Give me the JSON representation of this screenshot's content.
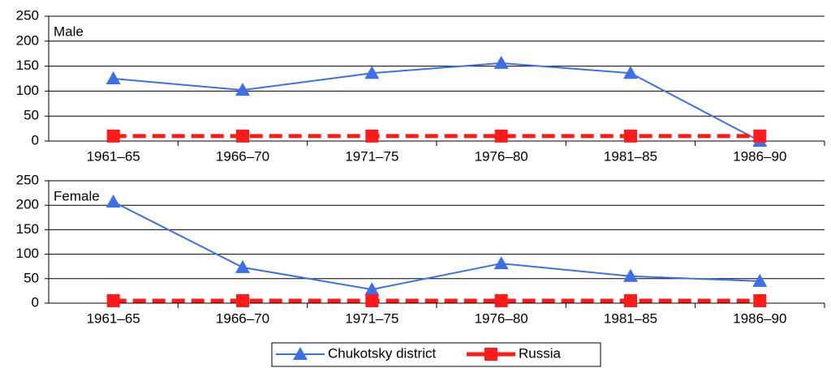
{
  "chart_data": [
    {
      "type": "line",
      "title": "Male",
      "categories": [
        "1961–65",
        "1966–70",
        "1971–75",
        "1976–80",
        "1981–85",
        "1986–90"
      ],
      "series": [
        {
          "name": "Chukotsky district",
          "color": "#3d6fe8",
          "marker": "triangle",
          "dashed": false,
          "values": [
            125,
            102,
            136,
            156,
            136,
            0
          ]
        },
        {
          "name": "Russia",
          "color": "#ff1a1a",
          "marker": "square",
          "dashed": true,
          "values": [
            10,
            10,
            10,
            10,
            10,
            10
          ]
        }
      ],
      "ylim": [
        0,
        250
      ],
      "yticks": [
        0,
        50,
        100,
        150,
        200,
        250
      ],
      "grid": true
    },
    {
      "type": "line",
      "title": "Female",
      "categories": [
        "1961–65",
        "1966–70",
        "1971–75",
        "1976–80",
        "1981–85",
        "1986–90"
      ],
      "series": [
        {
          "color": "#3d6fe8",
          "marker": "triangle",
          "dashed": false,
          "values": [
            207,
            73,
            28,
            81,
            55,
            45
          ]
        },
        {
          "color": "#ff1a1a",
          "marker": "square",
          "dashed": true,
          "values": [
            5,
            5,
            5,
            5,
            5,
            5
          ]
        }
      ],
      "ylim": [
        0,
        250
      ],
      "yticks": [
        0,
        50,
        100,
        150,
        200,
        250
      ],
      "grid": true
    }
  ]
}
